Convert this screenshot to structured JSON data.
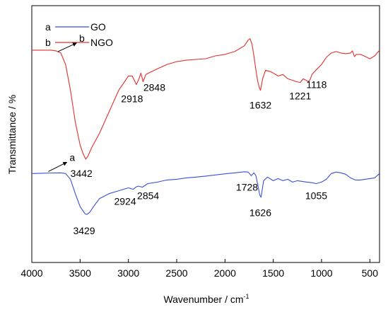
{
  "chart_data": {
    "type": "line",
    "title": "",
    "xlabel": "Wavenumber / cm",
    "xlabel_superscript": "-1",
    "ylabel": "Transmittance / %",
    "xlim": [
      4000,
      400
    ],
    "x_reversed": true,
    "x_ticks": [
      4000,
      3500,
      3000,
      2500,
      2000,
      1500,
      1000,
      500
    ],
    "y_ticks_shown": false,
    "grid": false,
    "legend_position": "top-left",
    "series": [
      {
        "name": "GO",
        "legend_letter": "a",
        "color": "#3a4fd6",
        "x": [
          4000,
          3900,
          3800,
          3700,
          3650,
          3600,
          3550,
          3500,
          3450,
          3430,
          3400,
          3350,
          3300,
          3200,
          3100,
          3000,
          2950,
          2924,
          2900,
          2854,
          2800,
          2700,
          2600,
          2500,
          2400,
          2300,
          2200,
          2100,
          2000,
          1900,
          1800,
          1760,
          1728,
          1700,
          1680,
          1660,
          1640,
          1626,
          1600,
          1560,
          1500,
          1450,
          1400,
          1350,
          1300,
          1250,
          1200,
          1150,
          1100,
          1055,
          1000,
          950,
          900,
          850,
          800,
          750,
          700,
          650,
          600,
          550,
          500,
          450,
          400
        ],
        "y": [
          62,
          62.2,
          62.4,
          62.5,
          62,
          58,
          48,
          39,
          34,
          33.5,
          35,
          40,
          44.5,
          48,
          50,
          52,
          51,
          52.5,
          53.2,
          52.5,
          55,
          56,
          57.5,
          58,
          59,
          59.5,
          60.2,
          61,
          61.8,
          62.5,
          63.2,
          63,
          60.5,
          62.5,
          60.5,
          54,
          47,
          45.5,
          57,
          59.5,
          57,
          58.5,
          57,
          58,
          56,
          57,
          56.5,
          56,
          55.6,
          55,
          56,
          58,
          62,
          63,
          62.5,
          61.5,
          59,
          57.5,
          57.5,
          58,
          58.5,
          59,
          62
        ]
      },
      {
        "name": "NGO",
        "legend_letter": "b",
        "color": "#e0302c",
        "x": [
          4000,
          3900,
          3800,
          3750,
          3700,
          3650,
          3600,
          3550,
          3500,
          3470,
          3442,
          3420,
          3380,
          3300,
          3200,
          3100,
          3000,
          2960,
          2918,
          2890,
          2870,
          2848,
          2820,
          2700,
          2600,
          2500,
          2400,
          2300,
          2200,
          2100,
          2000,
          1900,
          1800,
          1760,
          1740,
          1720,
          1700,
          1680,
          1660,
          1645,
          1632,
          1610,
          1580,
          1530,
          1500,
          1450,
          1400,
          1350,
          1300,
          1260,
          1221,
          1190,
          1160,
          1140,
          1118,
          1100,
          1060,
          1000,
          950,
          900,
          850,
          800,
          750,
          700,
          680,
          660,
          640,
          600,
          560,
          500,
          450,
          400
        ],
        "y": [
          148,
          148,
          148,
          147.5,
          146,
          138,
          120,
          98,
          82,
          76,
          72,
          74,
          80,
          90,
          105,
          120,
          130,
          130,
          124,
          128,
          132,
          126,
          131,
          135,
          138,
          140,
          141,
          141.5,
          142,
          144,
          145,
          147,
          151,
          155,
          156,
          152,
          144,
          134,
          126,
          122,
          120,
          128,
          134,
          133,
          132,
          130,
          131,
          128,
          127,
          126,
          125.5,
          128,
          127,
          126,
          127.5,
          131,
          134,
          138,
          143,
          146,
          147,
          146,
          145.5,
          146,
          147.5,
          143.5,
          145,
          145,
          144,
          142,
          144,
          148
        ]
      }
    ],
    "annotations": [
      {
        "text": "a",
        "series": 0,
        "arrow": true
      },
      {
        "text": "b",
        "series": 1,
        "arrow": true
      },
      {
        "text": "3442",
        "series": 1
      },
      {
        "text": "2918",
        "series": 1
      },
      {
        "text": "2848",
        "series": 1
      },
      {
        "text": "1632",
        "series": 1
      },
      {
        "text": "1221",
        "series": 1
      },
      {
        "text": "1118",
        "series": 1
      },
      {
        "text": "3429",
        "series": 0
      },
      {
        "text": "2924",
        "series": 0
      },
      {
        "text": "2854",
        "series": 0
      },
      {
        "text": "1728",
        "series": 0
      },
      {
        "text": "1626",
        "series": 0
      },
      {
        "text": "1055",
        "series": 0
      }
    ]
  }
}
